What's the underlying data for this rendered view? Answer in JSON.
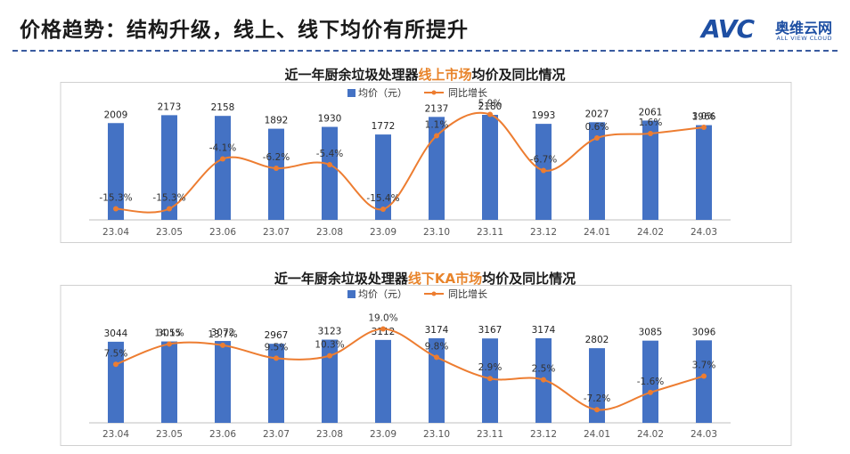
{
  "header": {
    "title": "价格趋势：结构升级，线上、线下均价有所提升",
    "brand_logo": "AVC",
    "brand_cn": "奥维云网",
    "brand_en": "ALL VIEW CLOUD"
  },
  "colors": {
    "bar": "#4472c4",
    "line": "#ed7d31",
    "accent": "#e8842b"
  },
  "chart_data": [
    {
      "type": "bar",
      "title_parts": [
        "近一年厨余垃圾处理器",
        "线上市场",
        "均价及同比情况"
      ],
      "categories": [
        "23.04",
        "23.05",
        "23.06",
        "23.07",
        "23.08",
        "23.09",
        "23.10",
        "23.11",
        "23.12",
        "24.01",
        "24.02",
        "24.03"
      ],
      "legend": [
        "均价（元）",
        "同比增长"
      ],
      "series": [
        {
          "name": "均价（元）",
          "type": "bar",
          "values": [
            2009,
            2173,
            2158,
            1892,
            1930,
            1772,
            2137,
            2180,
            1993,
            2027,
            2061,
            1966
          ]
        },
        {
          "name": "同比增长",
          "type": "line",
          "values": [
            -15.3,
            -15.3,
            -4.1,
            -6.2,
            -5.4,
            -15.4,
            1.1,
            5.9,
            -6.7,
            0.6,
            1.6,
            3.0
          ],
          "labels": [
            "-15.3%",
            "-15.3%",
            "-4.1%",
            "-6.2%",
            "-5.4%",
            "-15.4%",
            "1.1%",
            "5.9%",
            "-6.7%",
            "0.6%",
            "1.6%",
            "3.0%"
          ]
        }
      ]
    },
    {
      "type": "bar",
      "title_parts": [
        "近一年厨余垃圾处理器",
        "线下KA市场",
        "均价及同比情况"
      ],
      "categories": [
        "23.04",
        "23.05",
        "23.06",
        "23.07",
        "23.08",
        "23.09",
        "23.10",
        "23.11",
        "23.12",
        "24.01",
        "24.02",
        "24.03"
      ],
      "legend": [
        "均价（元）",
        "同比增长"
      ],
      "series": [
        {
          "name": "均价（元）",
          "type": "bar",
          "values": [
            3044,
            3055,
            3072,
            2967,
            3123,
            3112,
            3174,
            3167,
            3174,
            2802,
            3085,
            3096
          ]
        },
        {
          "name": "同比增长",
          "type": "line",
          "values": [
            7.5,
            14.1,
            13.7,
            9.5,
            10.3,
            19.0,
            9.8,
            2.9,
            2.5,
            -7.2,
            -1.6,
            3.7
          ],
          "labels": [
            "7.5%",
            "14.1%",
            "13.7%",
            "9.5%",
            "10.3%",
            "19.0%",
            "9.8%",
            "2.9%",
            "2.5%",
            "-7.2%",
            "-1.6%",
            "3.7%"
          ]
        }
      ]
    }
  ]
}
